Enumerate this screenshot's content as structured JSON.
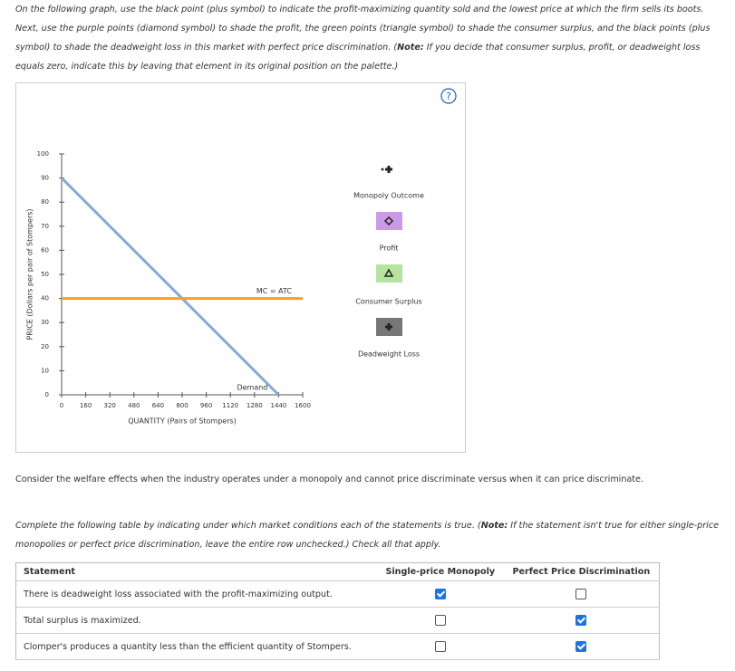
{
  "instructions": [
    "On the following graph, use the black point (plus symbol) to indicate the profit-maximizing quantity sold and the lowest price at which the firm sells its boots. Next, use the purple points (diamond symbol) to shade the profit, the green points (triangle symbol) to shade the consumer surplus, and the black points (plus symbol) to shade the deadweight loss in this market with perfect price discrimination. (",
    "Note:",
    " If you decide that consumer surplus, profit, or deadweight loss equals zero, indicate this by leaving that element in its original position on the palette.)"
  ],
  "help_icon": "?",
  "chart_data": {
    "type": "line",
    "x_label": "QUANTITY (Pairs of Stompers)",
    "y_label": "PRICE (Dollars per pair of Stompers)",
    "xlim": [
      0,
      1600
    ],
    "xticks": [
      0,
      160,
      320,
      480,
      640,
      800,
      960,
      1120,
      1280,
      1440,
      1600
    ],
    "ylim": [
      0,
      100
    ],
    "yticks": [
      0,
      10,
      20,
      30,
      40,
      50,
      60,
      70,
      80,
      90,
      100
    ],
    "series": [
      {
        "name": "Demand",
        "color": "#86a9d6",
        "x": [
          0,
          1440
        ],
        "values": [
          90,
          0
        ]
      },
      {
        "name": "MC = ATC",
        "color": "#f5a21b",
        "x": [
          0,
          1600
        ],
        "values": [
          40,
          40
        ]
      }
    ]
  },
  "palette": [
    "Monopoly Outcome",
    "Profit",
    "Consumer Surplus",
    "Deadweight Loss"
  ],
  "question": "Consider the welfare effects when the industry operates under a monopoly and cannot price discriminate versus when it can price discriminate.",
  "table_instructions": [
    "Complete the following table by indicating under which market conditions each of the statements is true. (",
    "Note:",
    " If the statement isn't true for either single-price monopolies or perfect price discrimination, leave the entire row unchecked.) Check all that apply."
  ],
  "table": {
    "headers": [
      "Statement",
      "Single-price Monopoly",
      "Perfect Price Discrimination"
    ],
    "rows": [
      {
        "statement": "There is deadweight loss associated with the profit-maximizing output.",
        "checks": [
          true,
          false
        ]
      },
      {
        "statement": "Total surplus is maximized.",
        "checks": [
          false,
          true
        ]
      },
      {
        "statement": "Clomper's produces a quantity less than the efficient quantity of Stompers.",
        "checks": [
          false,
          true
        ]
      }
    ]
  }
}
